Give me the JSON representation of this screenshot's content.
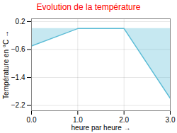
{
  "chart_data": {
    "type": "line",
    "title": "Evolution de la température",
    "xlabel": "heure par heure",
    "ylabel": "Température en °C",
    "x": [
      0,
      1,
      2,
      3
    ],
    "values": [
      -0.5,
      0.0,
      0.0,
      -2.0
    ],
    "color": "#5bbcd6",
    "xlim": [
      0.0,
      3.0
    ],
    "xticks": [
      0,
      1,
      2,
      3
    ],
    "ylim": [
      -2.35,
      0.28
    ],
    "yticks": [
      0.2,
      -0.6,
      -1.4,
      -2.2
    ],
    "grid": true
  }
}
